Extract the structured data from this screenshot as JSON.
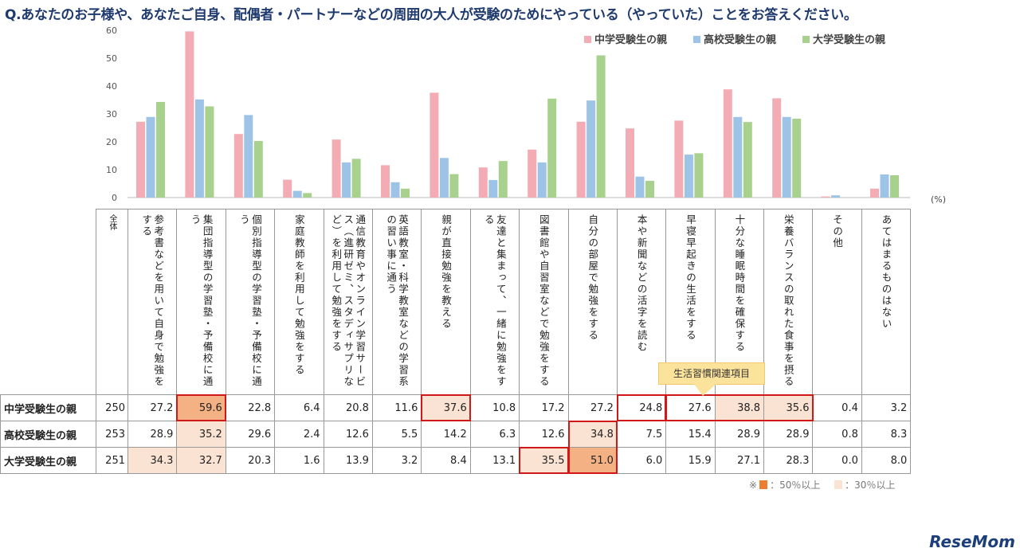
{
  "title": "Q.あなたのお子様や、あなたご自身、配偶者・パートナーなどの周囲の大人が受験のためにやっている（やっていた）ことをお答えください。",
  "chart_data": {
    "type": "bar",
    "ylim": [
      0,
      60
    ],
    "yticks": [
      0,
      10,
      20,
      30,
      40,
      50,
      60
    ],
    "unit": "(%)",
    "grid": false,
    "legend_position": "top-right",
    "categories": [
      "参考書などを用いて自身で勉強をする",
      "集団指導型の学習塾・予備校に通う",
      "個別指導型の学習塾・予備校に通う",
      "家庭教師を利用して勉強をする",
      "通信教育やオンライン学習サービス（進研ゼミ、スタディサプリなど）を利用して勉強をする",
      "英語教室・科学教室などの学習系の習い事に通う",
      "親が直接勉強を教える",
      "友達と集まって、一緒に勉強をする",
      "図書館や自習室などで勉強をする",
      "自分の部屋で勉強をする",
      "本や新聞などの活字を読む",
      "早寝早起きの生活をする",
      "十分な睡眠時間を確保する",
      "栄養バランスの取れた食事を摂る",
      "その他",
      "あてはまるものはない"
    ],
    "series": [
      {
        "name": "中学受験生の親",
        "n": "250",
        "color": "#f4acb4",
        "values": [
          27.2,
          59.6,
          22.8,
          6.4,
          20.8,
          11.6,
          37.6,
          10.8,
          17.2,
          27.2,
          24.8,
          27.6,
          38.8,
          35.6,
          0.4,
          3.2
        ]
      },
      {
        "name": "高校受験生の親",
        "n": "253",
        "color": "#9dc3e6",
        "values": [
          28.9,
          35.2,
          29.6,
          2.4,
          12.6,
          5.5,
          14.2,
          6.3,
          12.6,
          34.8,
          7.5,
          15.4,
          28.9,
          28.9,
          0.8,
          8.3
        ]
      },
      {
        "name": "大学受験生の親",
        "n": "251",
        "color": "#a9d18e",
        "values": [
          34.3,
          32.7,
          20.3,
          1.6,
          13.9,
          3.2,
          8.4,
          13.1,
          35.5,
          51.0,
          6.0,
          15.9,
          27.1,
          28.3,
          0.0,
          8.0
        ]
      }
    ]
  },
  "table": {
    "n_header": "全体"
  },
  "highlight": {
    "strong_color": "#f4b183",
    "light_color": "#fbe3d4",
    "box_color": "#d01818"
  },
  "callout": "生活習慣関連項目",
  "note": {
    "prefix": "※",
    "strong": "：50％以上",
    "light": "：30％以上"
  },
  "logo": "ReseMom"
}
